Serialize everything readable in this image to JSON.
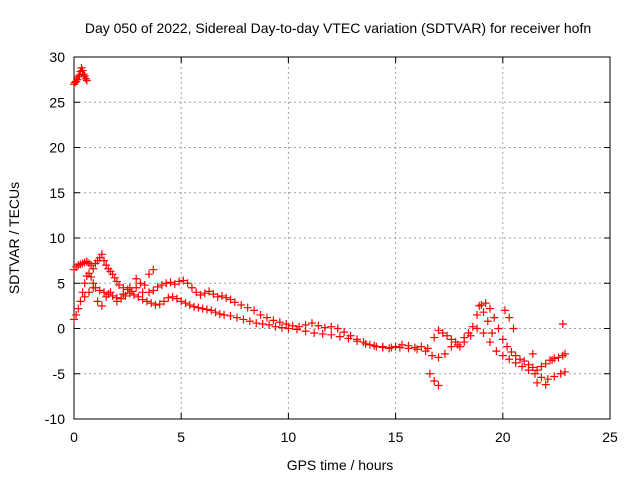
{
  "chart_data": {
    "type": "scatter",
    "title": "Day 050 of 2022, Sidereal Day-to-day VTEC variation (SDTVAR) for receiver hofn",
    "xlabel": "GPS time / hours",
    "ylabel": "SDTVAR / TECUs",
    "xlim": [
      0,
      25
    ],
    "ylim": [
      -10,
      30
    ],
    "xticks": [
      0,
      5,
      10,
      15,
      20,
      25
    ],
    "yticks": [
      -10,
      -5,
      0,
      5,
      10,
      15,
      20,
      25,
      30
    ],
    "grid": true,
    "marker": "+",
    "color": "#ff0000",
    "series": [
      {
        "name": "SDTVAR",
        "x": [
          0.0,
          0.05,
          0.1,
          0.15,
          0.2,
          0.25,
          0.3,
          0.35,
          0.4,
          0.45,
          0.5,
          0.55,
          0.6,
          0.0,
          0.1,
          0.2,
          0.3,
          0.4,
          0.5,
          0.6,
          0.7,
          0.8,
          0.9,
          1.0,
          1.1,
          1.2,
          1.3,
          1.4,
          1.5,
          1.6,
          1.7,
          1.8,
          1.9,
          2.0,
          2.1,
          2.3,
          2.5,
          2.7,
          2.9,
          3.1,
          3.3,
          3.5,
          3.7,
          3.9,
          4.1,
          4.3,
          4.5,
          4.7,
          4.9,
          5.1,
          5.3,
          5.5,
          5.7,
          5.9,
          6.1,
          6.3,
          6.5,
          6.7,
          6.9,
          7.1,
          7.3,
          7.5,
          7.8,
          8.1,
          8.4,
          8.7,
          9.0,
          9.3,
          9.6,
          9.9,
          10.2,
          10.5,
          10.8,
          11.1,
          11.4,
          11.7,
          12.0,
          12.3,
          12.6,
          12.9,
          13.2,
          13.5,
          13.8,
          14.1,
          14.4,
          14.7,
          15.0,
          15.3,
          15.6,
          15.9,
          16.2,
          16.5,
          16.8,
          17.0,
          17.2,
          17.4,
          17.6,
          17.8,
          18.0,
          18.2,
          18.4,
          18.6,
          18.8,
          19.0,
          19.2,
          19.4,
          19.6,
          19.8,
          20.0,
          20.2,
          20.4,
          20.6,
          20.8,
          21.0,
          21.2,
          21.4,
          21.6,
          21.8,
          22.0,
          22.2,
          22.4,
          22.6,
          22.8,
          22.9,
          0.0,
          0.1,
          0.2,
          0.3,
          0.4,
          0.5,
          0.6,
          0.7,
          0.8,
          0.9,
          1.0,
          1.2,
          1.4,
          1.6,
          1.8,
          2.0,
          2.2,
          2.4,
          2.6,
          2.8,
          3.0,
          3.2,
          3.4,
          3.6,
          3.8,
          4.0,
          4.2,
          4.4,
          4.6,
          4.8,
          5.0,
          5.2,
          5.4,
          5.6,
          5.8,
          6.0,
          6.2,
          6.4,
          6.6,
          6.8,
          7.0,
          7.3,
          7.6,
          7.9,
          8.2,
          8.5,
          8.8,
          9.1,
          9.4,
          9.7,
          10.0,
          10.4,
          10.8,
          11.2,
          11.6,
          12.0,
          12.4,
          12.8,
          13.2,
          13.6,
          14.0,
          14.4,
          14.8,
          15.2,
          15.6,
          16.0,
          16.4,
          16.7,
          17.0,
          17.3,
          17.6,
          17.9,
          18.2,
          18.5,
          18.8,
          19.1,
          19.4,
          19.7,
          20.0,
          20.3,
          20.6,
          20.9,
          21.2,
          21.5,
          21.8,
          22.1,
          22.4,
          22.7,
          22.9,
          0.5,
          0.7,
          0.9,
          1.1,
          1.3,
          1.5,
          1.7,
          2.0,
          2.3,
          2.6,
          2.9,
          3.2,
          3.5,
          3.7,
          16.6,
          16.8,
          17.0,
          18.9,
          19.1,
          19.3,
          19.5,
          20.1,
          20.3,
          20.5,
          21.4,
          21.6,
          22.0,
          22.3,
          22.8
        ],
        "y": [
          27.0,
          27.2,
          27.3,
          27.5,
          27.8,
          28.0,
          28.4,
          28.8,
          28.5,
          28.1,
          27.9,
          27.6,
          27.4,
          6.5,
          6.8,
          7.0,
          7.1,
          7.2,
          7.3,
          7.4,
          7.2,
          7.0,
          6.6,
          7.2,
          7.5,
          7.8,
          8.2,
          7.5,
          7.0,
          6.6,
          6.3,
          6.0,
          5.6,
          5.2,
          4.8,
          4.5,
          4.3,
          4.1,
          4.5,
          5.0,
          4.8,
          4.0,
          4.2,
          4.6,
          4.8,
          5.0,
          5.1,
          4.9,
          5.2,
          5.3,
          5.0,
          4.5,
          4.0,
          3.7,
          3.9,
          4.1,
          3.8,
          3.5,
          3.6,
          3.4,
          3.2,
          2.9,
          2.6,
          2.3,
          2.0,
          1.5,
          1.2,
          0.9,
          0.7,
          0.5,
          0.3,
          0.2,
          0.4,
          0.6,
          0.3,
          0.1,
          0.2,
          0.0,
          -0.4,
          -0.8,
          -1.2,
          -1.5,
          -1.8,
          -2.0,
          -2.1,
          -2.2,
          -2.0,
          -1.8,
          -1.9,
          -2.1,
          -2.0,
          -2.2,
          -1.0,
          -0.2,
          -0.5,
          -0.8,
          -1.2,
          -1.5,
          -2.0,
          -1.0,
          -0.5,
          0.2,
          1.5,
          2.6,
          2.8,
          2.2,
          1.2,
          0.0,
          -1.2,
          -2.0,
          -2.6,
          -3.0,
          -3.4,
          -3.6,
          -4.0,
          -4.3,
          -4.6,
          -4.2,
          -3.9,
          -3.5,
          -3.3,
          -3.2,
          -3.0,
          -2.8,
          1.0,
          1.5,
          2.2,
          3.0,
          4.0,
          5.0,
          5.8,
          6.1,
          5.7,
          5.0,
          4.5,
          4.2,
          4.0,
          3.8,
          3.6,
          3.4,
          3.3,
          3.6,
          3.9,
          3.7,
          3.5,
          3.2,
          3.0,
          2.8,
          2.6,
          2.7,
          3.0,
          3.4,
          3.5,
          3.3,
          3.0,
          2.8,
          2.6,
          2.4,
          2.3,
          2.2,
          2.1,
          2.0,
          1.8,
          1.6,
          1.5,
          1.4,
          1.2,
          1.0,
          0.8,
          0.6,
          0.5,
          0.4,
          0.2,
          0.1,
          0.0,
          -0.1,
          -0.3,
          -0.5,
          -0.6,
          -0.7,
          -0.9,
          -1.1,
          -1.4,
          -1.7,
          -1.9,
          -2.0,
          -2.1,
          -2.1,
          -2.2,
          -2.3,
          -2.5,
          -3.0,
          -3.2,
          -2.8,
          -2.0,
          -1.8,
          -1.5,
          -0.8,
          0.0,
          -0.5,
          -1.5,
          -2.5,
          -3.0,
          -3.4,
          -3.8,
          -4.2,
          -4.6,
          -5.0,
          -5.4,
          -5.6,
          -5.3,
          -5.0,
          -4.8,
          3.5,
          4.0,
          4.5,
          3.0,
          2.5,
          3.5,
          4.0,
          3.0,
          3.8,
          4.5,
          5.5,
          4.0,
          6.0,
          6.5,
          -5.0,
          -5.8,
          -6.3,
          2.5,
          1.8,
          0.8,
          -0.5,
          2.0,
          1.2,
          0.0,
          -2.8,
          -6.0,
          -6.2,
          -3.5,
          0.5
        ]
      }
    ]
  }
}
